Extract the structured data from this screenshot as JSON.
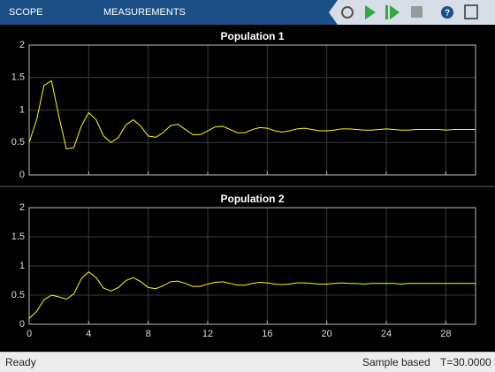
{
  "toolbar": {
    "tabs": [
      "SCOPE",
      "MEASUREMENTS"
    ]
  },
  "chart_data": [
    {
      "type": "line",
      "title": "Population 1",
      "x": [
        0,
        0.5,
        1,
        1.5,
        2,
        2.5,
        3,
        3.5,
        4,
        4.5,
        5,
        5.5,
        6,
        6.5,
        7,
        7.5,
        8,
        8.5,
        9,
        9.5,
        10,
        10.5,
        11,
        11.5,
        12,
        12.5,
        13,
        13.5,
        14,
        14.5,
        15,
        15.5,
        16,
        16.5,
        17,
        17.5,
        18,
        18.5,
        19,
        19.5,
        20,
        20.5,
        21,
        21.5,
        22,
        22.5,
        23,
        23.5,
        24,
        24.5,
        25,
        25.5,
        26,
        26.5,
        27,
        27.5,
        28,
        28.5,
        29,
        29.5,
        30
      ],
      "series": [
        {
          "color": "#ffff00",
          "values": [
            0.5,
            0.85,
            1.38,
            1.45,
            0.9,
            0.4,
            0.42,
            0.75,
            0.96,
            0.85,
            0.6,
            0.5,
            0.58,
            0.77,
            0.85,
            0.75,
            0.6,
            0.58,
            0.65,
            0.76,
            0.78,
            0.7,
            0.62,
            0.62,
            0.68,
            0.74,
            0.75,
            0.7,
            0.65,
            0.65,
            0.7,
            0.73,
            0.72,
            0.68,
            0.66,
            0.68,
            0.71,
            0.72,
            0.7,
            0.68,
            0.68,
            0.69,
            0.71,
            0.71,
            0.7,
            0.69,
            0.69,
            0.7,
            0.71,
            0.7,
            0.69,
            0.69,
            0.7,
            0.7,
            0.7,
            0.7,
            0.69,
            0.7,
            0.7,
            0.7,
            0.7
          ]
        }
      ],
      "xlim": [
        0,
        30
      ],
      "ylim": [
        0,
        2
      ],
      "yticks": [
        0,
        0.5,
        1,
        1.5,
        2
      ],
      "xticks": [
        0,
        4,
        8,
        12,
        16,
        20,
        24,
        28
      ],
      "grid": true
    },
    {
      "type": "line",
      "title": "Population 2",
      "x": [
        0,
        0.5,
        1,
        1.5,
        2,
        2.5,
        3,
        3.5,
        4,
        4.5,
        5,
        5.5,
        6,
        6.5,
        7,
        7.5,
        8,
        8.5,
        9,
        9.5,
        10,
        10.5,
        11,
        11.5,
        12,
        12.5,
        13,
        13.5,
        14,
        14.5,
        15,
        15.5,
        16,
        16.5,
        17,
        17.5,
        18,
        18.5,
        19,
        19.5,
        20,
        20.5,
        21,
        21.5,
        22,
        22.5,
        23,
        23.5,
        24,
        24.5,
        25,
        25.5,
        26,
        26.5,
        27,
        27.5,
        28,
        28.5,
        29,
        29.5,
        30
      ],
      "series": [
        {
          "color": "#ffff00",
          "values": [
            0.1,
            0.22,
            0.42,
            0.5,
            0.47,
            0.43,
            0.52,
            0.78,
            0.9,
            0.8,
            0.62,
            0.57,
            0.63,
            0.75,
            0.8,
            0.73,
            0.63,
            0.61,
            0.66,
            0.73,
            0.74,
            0.7,
            0.65,
            0.65,
            0.69,
            0.72,
            0.73,
            0.7,
            0.67,
            0.67,
            0.7,
            0.72,
            0.71,
            0.69,
            0.68,
            0.69,
            0.71,
            0.71,
            0.7,
            0.69,
            0.69,
            0.7,
            0.71,
            0.7,
            0.7,
            0.69,
            0.7,
            0.7,
            0.7,
            0.7,
            0.69,
            0.7,
            0.7,
            0.7,
            0.7,
            0.7,
            0.7,
            0.7,
            0.7,
            0.7,
            0.7
          ]
        }
      ],
      "xlim": [
        0,
        30
      ],
      "ylim": [
        0,
        2
      ],
      "yticks": [
        0,
        0.5,
        1,
        1.5,
        2
      ],
      "xticks": [
        0,
        4,
        8,
        12,
        16,
        20,
        24,
        28
      ],
      "grid": true,
      "xticklabels": true
    }
  ],
  "status": {
    "state": "Ready",
    "mode": "Sample based",
    "time": "T=30.0000"
  }
}
